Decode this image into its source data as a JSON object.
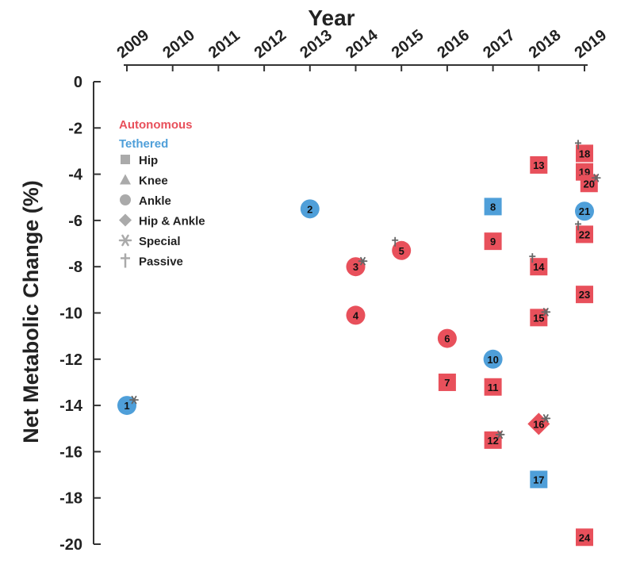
{
  "chart_data": {
    "type": "scatter",
    "title": "Year",
    "xlabel": "Year",
    "ylabel": "Net Metabolic Change (%)",
    "x_ticks": [
      "2009",
      "2010",
      "2011",
      "2012",
      "2013",
      "2014",
      "2015",
      "2016",
      "2017",
      "2018",
      "2019"
    ],
    "y_ticks": [
      0,
      -2,
      -4,
      -6,
      -8,
      -10,
      -12,
      -14,
      -16,
      -18,
      -20
    ],
    "xlim": [
      2009,
      2019
    ],
    "ylim": [
      -20,
      0
    ],
    "colors": {
      "Autonomous": "#e8505b",
      "Tethered": "#4f9fd9",
      "legend_shape": "#aaaaaa",
      "marker_symbol": "#666666"
    },
    "legend": {
      "placement": "top-left",
      "categories": [
        {
          "label": "Autonomous",
          "color": "#e8505b"
        },
        {
          "label": "Tethered",
          "color": "#4f9fd9"
        }
      ],
      "shapes": [
        {
          "label": "Hip",
          "shape": "square"
        },
        {
          "label": "Knee",
          "shape": "triangle"
        },
        {
          "label": "Ankle",
          "shape": "circle"
        },
        {
          "label": "Hip & Ankle",
          "shape": "diamond"
        },
        {
          "label": "Special",
          "shape": "asterisk"
        },
        {
          "label": "Passive",
          "shape": "dagger"
        }
      ]
    },
    "points": [
      {
        "label": "1",
        "x": 2009.0,
        "y": -14.0,
        "category": "Tethered",
        "shape": "circle",
        "mark": "special"
      },
      {
        "label": "2",
        "x": 2013.0,
        "y": -5.5,
        "category": "Tethered",
        "shape": "circle",
        "mark": ""
      },
      {
        "label": "3",
        "x": 2014.0,
        "y": -8.0,
        "category": "Autonomous",
        "shape": "circle",
        "mark": "special"
      },
      {
        "label": "4",
        "x": 2014.0,
        "y": -10.1,
        "category": "Autonomous",
        "shape": "circle",
        "mark": ""
      },
      {
        "label": "5",
        "x": 2015.0,
        "y": -7.3,
        "category": "Autonomous",
        "shape": "circle",
        "mark": "passive"
      },
      {
        "label": "6",
        "x": 2016.0,
        "y": -11.1,
        "category": "Autonomous",
        "shape": "circle",
        "mark": ""
      },
      {
        "label": "7",
        "x": 2016.0,
        "y": -13.0,
        "category": "Autonomous",
        "shape": "square",
        "mark": ""
      },
      {
        "label": "8",
        "x": 2017.0,
        "y": -5.4,
        "category": "Tethered",
        "shape": "square",
        "mark": ""
      },
      {
        "label": "9",
        "x": 2017.0,
        "y": -6.9,
        "category": "Autonomous",
        "shape": "square",
        "mark": ""
      },
      {
        "label": "10",
        "x": 2017.0,
        "y": -12.0,
        "category": "Tethered",
        "shape": "circle",
        "mark": ""
      },
      {
        "label": "11",
        "x": 2017.0,
        "y": -13.2,
        "category": "Autonomous",
        "shape": "square",
        "mark": ""
      },
      {
        "label": "12",
        "x": 2017.0,
        "y": -15.5,
        "category": "Autonomous",
        "shape": "square",
        "mark": "special"
      },
      {
        "label": "13",
        "x": 2018.0,
        "y": -3.6,
        "category": "Autonomous",
        "shape": "square",
        "mark": ""
      },
      {
        "label": "14",
        "x": 2018.0,
        "y": -8.0,
        "category": "Autonomous",
        "shape": "square",
        "mark": "passive"
      },
      {
        "label": "15",
        "x": 2018.0,
        "y": -10.2,
        "category": "Autonomous",
        "shape": "square",
        "mark": "special"
      },
      {
        "label": "16",
        "x": 2018.0,
        "y": -14.8,
        "category": "Autonomous",
        "shape": "diamond",
        "mark": "special"
      },
      {
        "label": "17",
        "x": 2018.0,
        "y": -17.2,
        "category": "Tethered",
        "shape": "square",
        "mark": ""
      },
      {
        "label": "18",
        "x": 2019.0,
        "y": -3.1,
        "category": "Autonomous",
        "shape": "square",
        "mark": "passive"
      },
      {
        "label": "19",
        "x": 2019.0,
        "y": -3.9,
        "category": "Autonomous",
        "shape": "square",
        "mark": ""
      },
      {
        "label": "20",
        "x": 2019.1,
        "y": -4.4,
        "category": "Autonomous",
        "shape": "square",
        "mark": "special"
      },
      {
        "label": "21",
        "x": 2019.0,
        "y": -5.6,
        "category": "Tethered",
        "shape": "circle",
        "mark": ""
      },
      {
        "label": "22",
        "x": 2019.0,
        "y": -6.6,
        "category": "Autonomous",
        "shape": "square",
        "mark": "passive"
      },
      {
        "label": "23",
        "x": 2019.0,
        "y": -9.2,
        "category": "Autonomous",
        "shape": "square",
        "mark": ""
      },
      {
        "label": "24",
        "x": 2019.0,
        "y": -19.7,
        "category": "Autonomous",
        "shape": "square",
        "mark": ""
      }
    ]
  }
}
